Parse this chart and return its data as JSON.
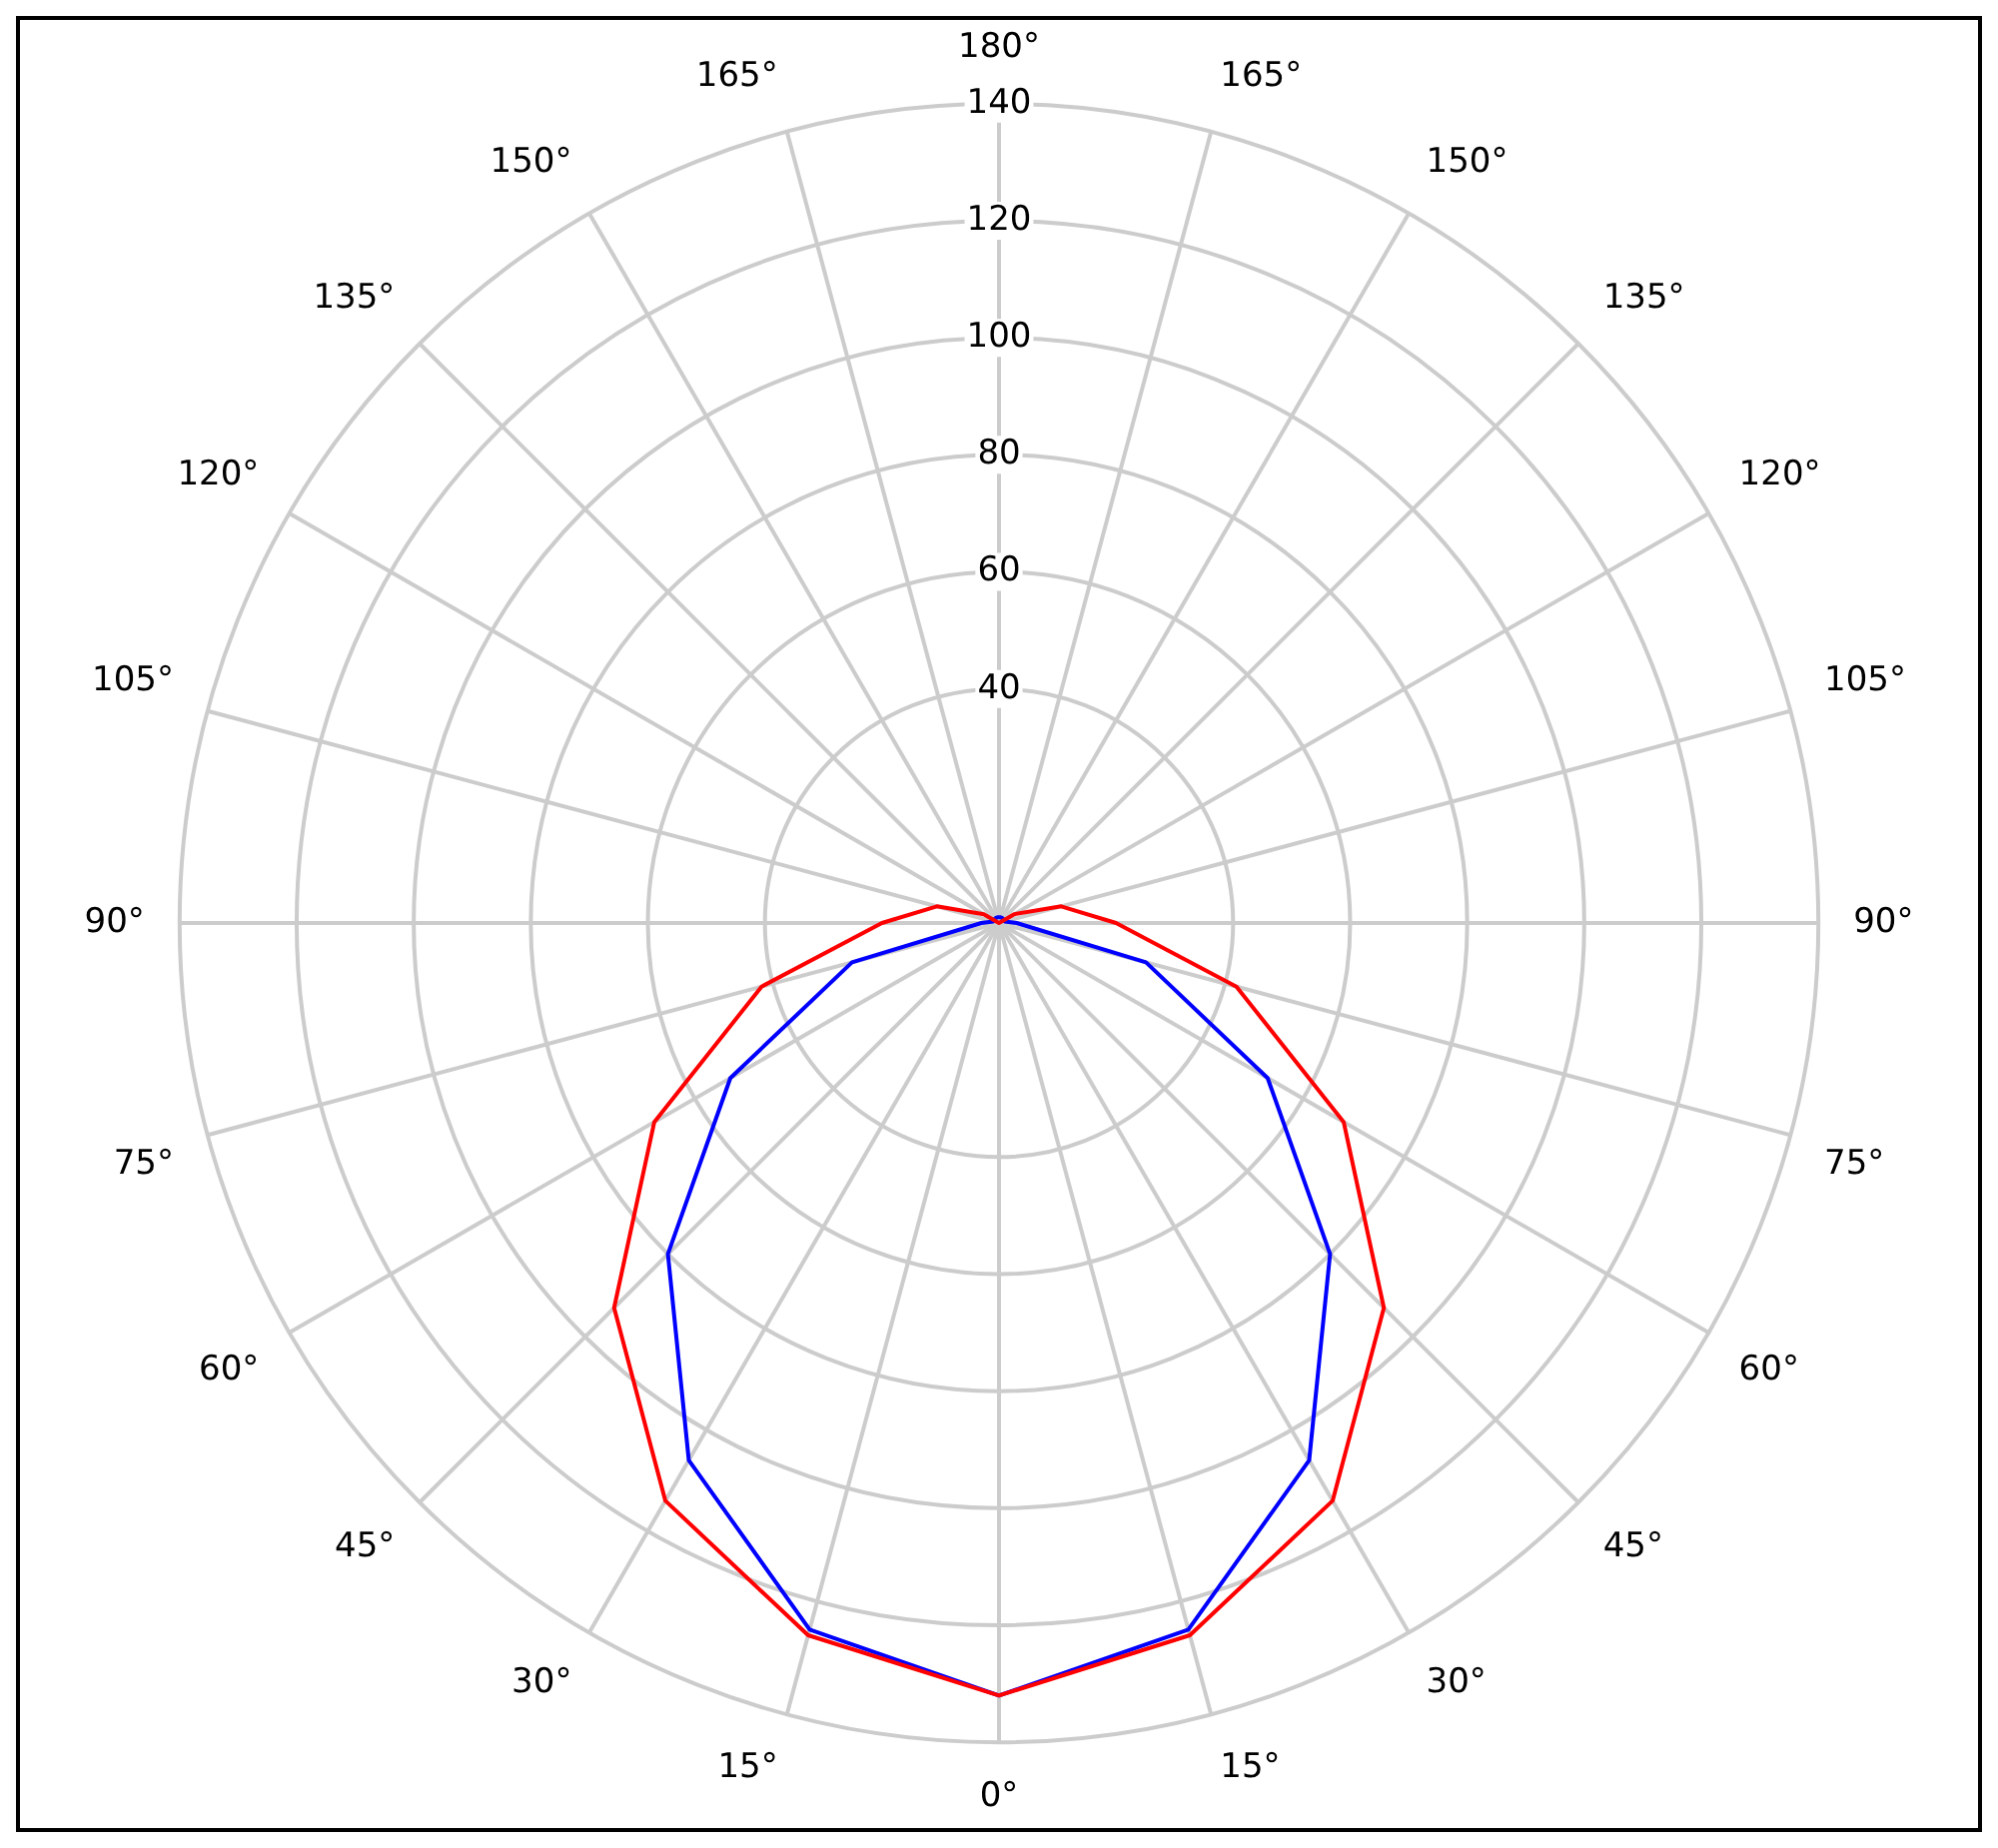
{
  "chart_data": {
    "type": "radar",
    "categories": [
      "180°",
      "165°",
      "150°",
      "135°",
      "120°",
      "105°",
      "90°",
      "75°",
      "60°",
      "45°",
      "30°",
      "15°",
      "0°",
      "15°",
      "30°",
      "45°",
      "60°",
      "75°",
      "90°",
      "105°",
      "120°",
      "135°",
      "150°",
      "165°"
    ],
    "series": [
      {
        "color": "#ff0000",
        "values": [
          0,
          0,
          0,
          0,
          3,
          11,
          20,
          42,
          68,
          93,
          114,
          126,
          132,
          126,
          114,
          93,
          68,
          42,
          20,
          11,
          3,
          0,
          0,
          0
        ]
      },
      {
        "color": "#0000ff",
        "values": [
          1,
          1,
          1,
          1,
          1,
          1,
          3,
          26,
          53,
          80,
          106,
          125,
          132,
          125,
          106,
          80,
          53,
          26,
          3,
          1,
          1,
          1,
          1,
          1
        ]
      }
    ],
    "ylim": [
      0,
      140
    ],
    "yticks": [
      40,
      60,
      80,
      100,
      120,
      140
    ],
    "grid": true
  }
}
